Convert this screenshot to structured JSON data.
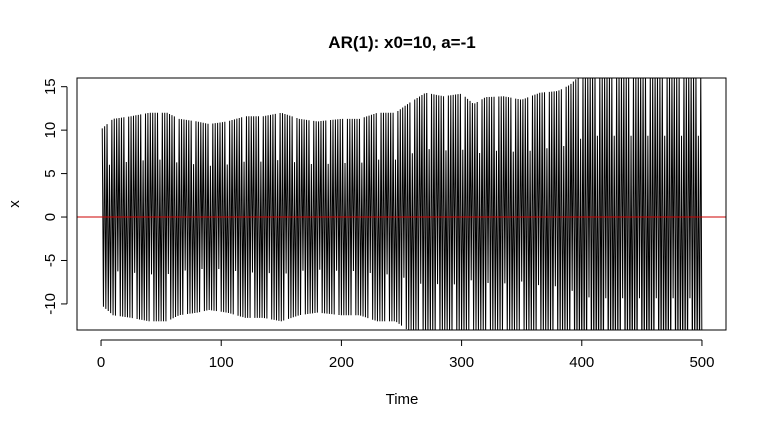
{
  "chart_data": {
    "type": "line",
    "title": "AR(1): x0=10, a=-1",
    "xlabel": "Time",
    "ylabel": "x",
    "xlim": [
      -20,
      520
    ],
    "ylim": [
      -13,
      16
    ],
    "xticks": [
      0,
      100,
      200,
      300,
      400,
      500
    ],
    "yticks": [
      -10,
      -5,
      0,
      5,
      10,
      15
    ],
    "xtick_labels": [
      "0",
      "100",
      "200",
      "300",
      "400",
      "500"
    ],
    "ytick_labels": [
      "-10",
      "-5",
      "0",
      "5",
      "10",
      "15"
    ],
    "grid": false,
    "reference_line": {
      "y": 0,
      "color": "#cc0000"
    },
    "series": [
      {
        "color": "#000000",
        "envelope": {
          "x": [
            1,
            10,
            25,
            40,
            55,
            65,
            80,
            90,
            105,
            120,
            135,
            150,
            165,
            180,
            200,
            215,
            230,
            245,
            255,
            270,
            285,
            300,
            310,
            320,
            335,
            350,
            365,
            380,
            390,
            400,
            410,
            500
          ],
          "amplitude": [
            10.2,
            11.3,
            11.6,
            12.0,
            12.0,
            11.3,
            11.0,
            10.7,
            11.0,
            11.6,
            11.6,
            12.0,
            11.3,
            11.0,
            11.3,
            11.3,
            12.0,
            12.0,
            13.0,
            14.3,
            13.9,
            14.2,
            13.0,
            13.8,
            13.9,
            13.5,
            14.3,
            14.5,
            15.2,
            16.5,
            17.0,
            17.0
          ]
        }
      }
    ]
  }
}
